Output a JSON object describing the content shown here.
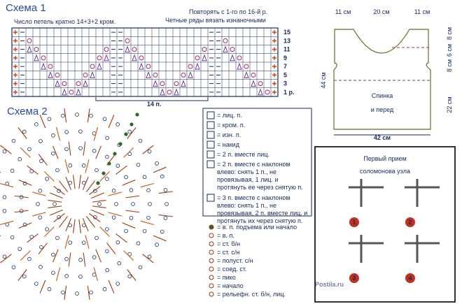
{
  "schema1": {
    "title": "Схема 1",
    "note_multiple": "Число петель кратно 14+3+2 кром.",
    "note_repeat": "Повторять с 1-го по 16-й р.",
    "note_even": "Четные ряды вязать изнаночными",
    "row_numbers": [
      "15",
      "13",
      "11",
      "9",
      "7",
      "5",
      "3",
      "1 р."
    ],
    "repeat_label": "14 п."
  },
  "schema2": {
    "title": "Схема 2"
  },
  "pattern": {
    "top_widths": [
      "11 см",
      "20 см",
      "11 см"
    ],
    "right_heights": [
      "8 см",
      "6 см",
      "8 см"
    ],
    "right_lower": "22 см",
    "left_height": "44 см",
    "bottom_width": "42 см",
    "label": [
      "Спинка",
      "и перед"
    ]
  },
  "legend_knit": [
    [
      "= лиц. п."
    ],
    [
      "= кром. п."
    ],
    [
      "= изн. п."
    ],
    [
      "= накид"
    ],
    [
      "= 2 п. вместе лиц."
    ],
    [
      "= 2 п. вместе с наклоном",
      "влево: снять 1 п., не",
      "провязывая, 1 лиц. и",
      "протянуть ее через снятую п."
    ],
    [
      "= 3 п. вместе с наклоном",
      "влево: снять 1 п., не",
      "провязывая, 2 п. вместе лиц. и",
      "протянуть их через снятую п."
    ]
  ],
  "legend_crochet": [
    "= в. п. подъема или начало",
    "= в. п.",
    "= ст. б/н",
    "= ст. с/н",
    "= полуст. с/н",
    "= соед. ст.",
    "= пико",
    "= начало",
    "= рельефн. ст. б/н, лиц."
  ],
  "knot": {
    "title": [
      "Первый прием",
      "соломонова узла"
    ],
    "steps": [
      "1",
      "2",
      "3",
      "4"
    ]
  },
  "watermark": "Postila.ru"
}
